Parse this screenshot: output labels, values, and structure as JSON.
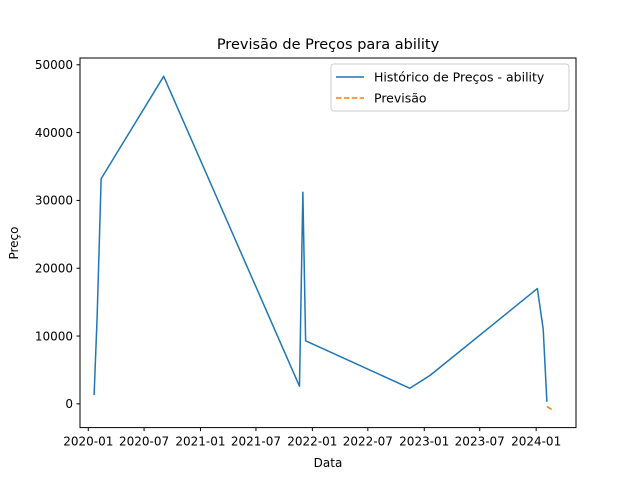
{
  "chart_data": {
    "type": "line",
    "title": "Previsão de Preços para ability",
    "xlabel": "Data",
    "ylabel": "Preço",
    "xlim": [
      "2019-12-05",
      "2024-05-10"
    ],
    "ylim": [
      -3500,
      51000
    ],
    "x_ticks": [
      "2020-01-01",
      "2020-07-01",
      "2021-01-01",
      "2021-07-01",
      "2022-01-01",
      "2022-07-01",
      "2023-01-01",
      "2023-07-01",
      "2024-01-01"
    ],
    "x_tick_labels": [
      "2020-01",
      "2020-07",
      "2021-01",
      "2021-07",
      "2022-01",
      "2022-07",
      "2023-01",
      "2023-07",
      "2024-01"
    ],
    "y_ticks": [
      0,
      10000,
      20000,
      30000,
      40000,
      50000
    ],
    "y_tick_labels": [
      "0",
      "10000",
      "20000",
      "30000",
      "40000",
      "50000"
    ],
    "grid": false,
    "legend_position": "top-right",
    "series": [
      {
        "name": "Histórico de Preços - ability",
        "color": "#1f77b4",
        "style": "solid",
        "points": [
          [
            "2020-01-20",
            1300
          ],
          [
            "2020-01-30",
            13000
          ],
          [
            "2020-02-12",
            33200
          ],
          [
            "2020-09-03",
            48300
          ],
          [
            "2021-11-20",
            2600
          ],
          [
            "2021-12-01",
            31200
          ],
          [
            "2021-12-10",
            9300
          ],
          [
            "2022-11-15",
            2300
          ],
          [
            "2023-01-20",
            4200
          ],
          [
            "2024-01-05",
            17000
          ],
          [
            "2024-01-24",
            11000
          ],
          [
            "2024-02-05",
            300
          ]
        ]
      },
      {
        "name": "Previsão",
        "color": "#ff7f0e",
        "style": "dashed",
        "points": [
          [
            "2024-02-05",
            -400
          ],
          [
            "2024-02-28",
            -1000
          ]
        ]
      }
    ]
  }
}
